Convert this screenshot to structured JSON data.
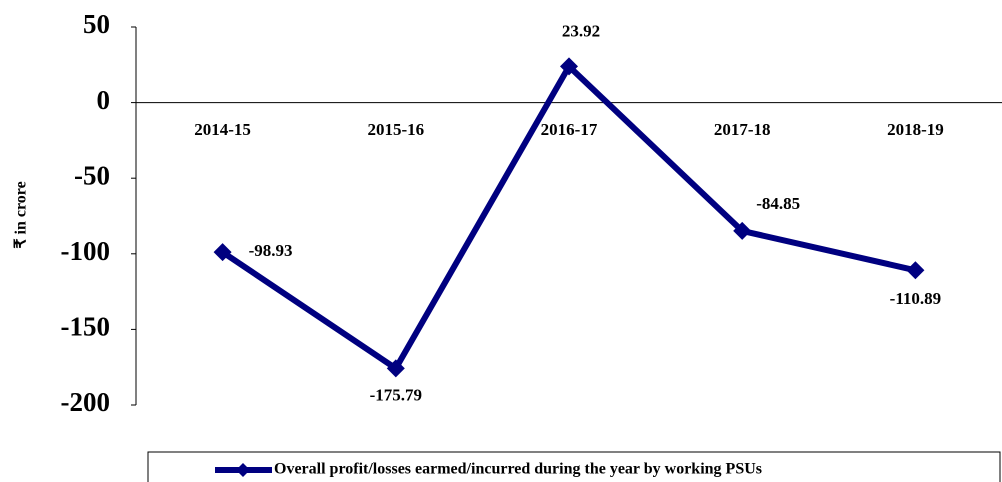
{
  "chart_data": {
    "type": "line",
    "y_label": "₹ in crore",
    "categories": [
      "2014-15",
      "2015-16",
      "2016-17",
      "2017-18",
      "2018-19"
    ],
    "series": [
      {
        "name": "Overall profit/losses earmed/incurred during the year by working PSUs",
        "color": "#000080",
        "values": [
          -98.93,
          -175.79,
          23.92,
          -84.85,
          -110.89
        ]
      }
    ],
    "ylim": [
      -200,
      50
    ],
    "yticks": [
      50,
      0,
      -50,
      -100,
      -150,
      -200
    ],
    "grid": false,
    "legend": "bottom"
  }
}
